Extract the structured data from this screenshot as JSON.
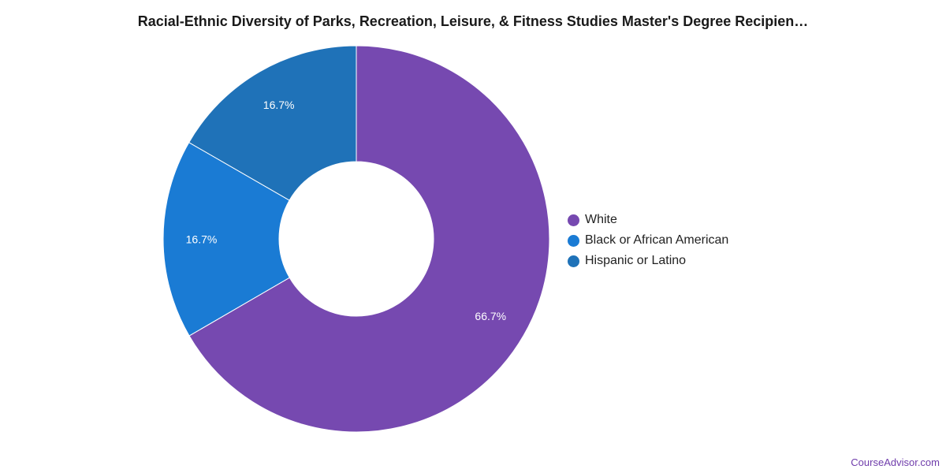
{
  "chart_data": {
    "type": "pie",
    "title": "Racial-Ethnic Diversity of Parks, Recreation, Leisure, & Fitness Studies Master's Degree Recipien…",
    "categories": [
      "White",
      "Black or African American",
      "Hispanic or Latino"
    ],
    "values": [
      66.7,
      16.7,
      16.7
    ],
    "labels": [
      "66.7%",
      "16.7%",
      "16.7%"
    ],
    "colors": [
      "#7649b0",
      "#1a7bd4",
      "#1f72b8"
    ],
    "donut": true,
    "legend_position": "right"
  },
  "credit": "CourseAdvisor.com"
}
